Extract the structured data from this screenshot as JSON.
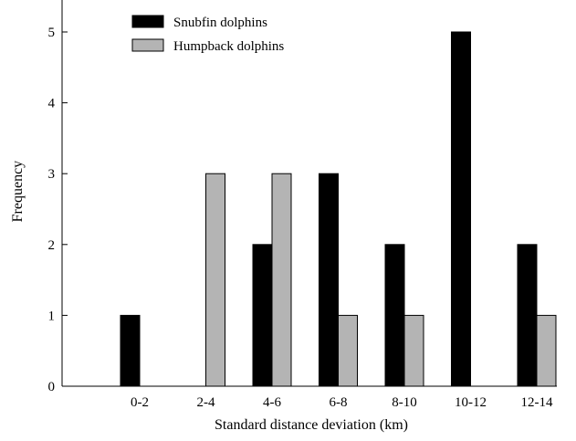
{
  "chart_data": {
    "type": "bar",
    "categories": [
      "0-2",
      "2-4",
      "4-6",
      "6-8",
      "8-10",
      "10-12",
      "12-14"
    ],
    "series": [
      {
        "name": "Snubfin dolphins",
        "values": [
          1,
          0,
          2,
          3,
          2,
          5,
          2
        ],
        "color": "#000000"
      },
      {
        "name": "Humpback dolphins",
        "values": [
          0,
          3,
          3,
          1,
          1,
          0,
          1
        ],
        "color": "#b4b4b4"
      }
    ],
    "xlabel": "Standard distance deviation (km)",
    "ylabel": "Frequency",
    "ylim": [
      0,
      5.5
    ],
    "yticks": [
      0,
      1,
      2,
      3,
      4,
      5
    ],
    "grid": false,
    "legend_position": "top-left"
  }
}
